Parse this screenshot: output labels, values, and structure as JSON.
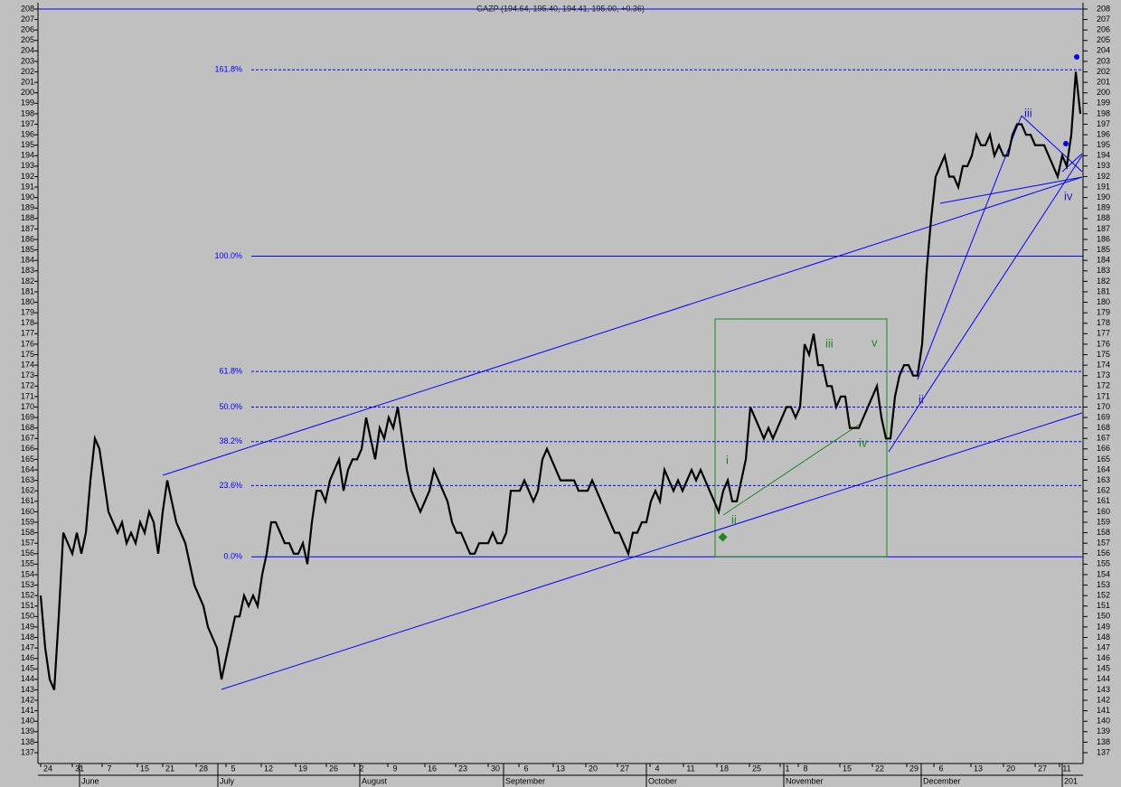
{
  "chart_data": {
    "type": "line",
    "title": "GAZP (194.64, 195.40, 194.41, 195.00, +0.36)",
    "ylim": [
      137,
      208
    ],
    "yticks": [
      137,
      138,
      139,
      140,
      141,
      142,
      143,
      144,
      145,
      146,
      147,
      148,
      149,
      150,
      151,
      152,
      153,
      154,
      155,
      156,
      157,
      158,
      159,
      160,
      161,
      162,
      163,
      164,
      165,
      166,
      167,
      168,
      169,
      170,
      171,
      172,
      173,
      174,
      175,
      176,
      177,
      178,
      179,
      180,
      181,
      182,
      183,
      184,
      185,
      186,
      187,
      188,
      189,
      190,
      191,
      192,
      193,
      194,
      195,
      196,
      197,
      198,
      199,
      200,
      201,
      202,
      203,
      204,
      205,
      206,
      207,
      208
    ],
    "x_labels": [
      "24",
      "31",
      "7",
      "15",
      "21",
      "28",
      "5",
      "12",
      "19",
      "26",
      "2",
      "9",
      "16",
      "23",
      "30",
      "6",
      "13",
      "20",
      "27",
      "4",
      "11",
      "18",
      "25",
      "1",
      "8",
      "15",
      "22",
      "29",
      "6",
      "13",
      "20",
      "27",
      "11"
    ],
    "months": [
      "June",
      "July",
      "August",
      "September",
      "October",
      "November",
      "December",
      "201"
    ],
    "levels": [
      {
        "value": 202.2,
        "label": "161.8%",
        "style": "dashed"
      },
      {
        "value": 184.4,
        "label": "100.0%",
        "style": "solid"
      },
      {
        "value": 173.4,
        "label": "61.8%",
        "style": "dashed"
      },
      {
        "value": 170.0,
        "label": "50.0%",
        "style": "dashed"
      },
      {
        "value": 166.7,
        "label": "38.2%",
        "style": "dashed"
      },
      {
        "value": 162.5,
        "label": "23.6%",
        "style": "dashed"
      },
      {
        "value": 155.7,
        "label": "0.0%",
        "style": "solid"
      }
    ],
    "annotations": [
      "iii",
      "v",
      "iv",
      "i",
      "ii",
      "ii",
      "iii",
      "iv"
    ],
    "series": [
      {
        "name": "GAZP",
        "color": "#000000",
        "values": [
          152,
          147,
          144,
          143,
          150,
          158,
          157,
          156,
          158,
          156,
          158,
          163,
          167,
          166,
          163,
          160,
          159,
          158,
          159,
          157,
          158,
          157,
          159,
          158,
          160,
          159,
          156,
          160,
          163,
          161,
          159,
          158,
          157,
          155,
          153,
          152,
          151,
          149,
          148,
          147,
          144,
          146,
          148,
          150,
          150,
          152,
          151,
          152,
          151,
          154,
          156,
          159,
          159,
          158,
          157,
          157,
          156,
          156,
          157,
          155,
          159,
          162,
          162,
          161,
          163,
          164,
          165,
          162,
          164,
          165,
          165,
          166,
          169,
          167,
          165,
          168,
          167,
          169,
          168,
          170,
          167,
          164,
          162,
          161,
          160,
          161,
          162,
          164,
          163,
          162,
          161,
          159,
          158,
          158,
          157,
          156,
          156,
          157,
          157,
          157,
          158,
          157,
          157,
          158,
          162,
          162,
          162,
          163,
          162,
          161,
          162,
          165,
          166,
          165,
          164,
          163,
          163,
          163,
          163,
          162,
          162,
          162,
          163,
          162,
          161,
          160,
          159,
          158,
          158,
          157,
          156,
          158,
          158,
          159,
          159,
          161,
          162,
          161,
          164,
          163,
          162,
          163,
          162,
          163,
          164,
          163,
          164,
          163,
          162,
          161,
          160,
          162,
          163,
          161,
          161,
          163,
          165,
          170,
          169,
          168,
          167,
          168,
          167,
          168,
          169,
          170,
          170,
          169,
          170,
          176,
          175,
          177,
          174,
          174,
          172,
          172,
          170,
          171,
          171,
          168,
          168,
          168,
          169,
          170,
          171,
          172,
          169,
          167,
          167,
          171,
          173,
          174,
          174,
          173,
          173,
          176,
          183,
          188,
          192,
          193,
          194,
          192,
          192,
          191,
          193,
          193,
          194,
          196,
          195,
          195,
          196,
          194,
          195,
          194,
          194,
          196,
          197,
          197,
          196,
          196,
          195,
          195,
          195,
          194,
          193,
          192,
          194,
          193,
          196,
          202,
          198
        ]
      }
    ]
  }
}
